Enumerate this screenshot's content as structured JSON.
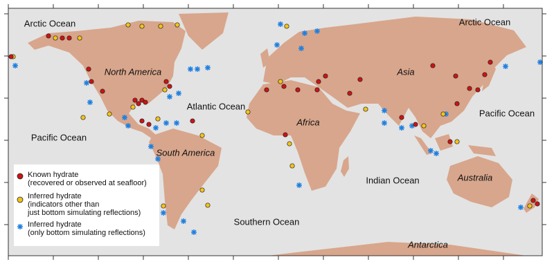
{
  "labels": [
    {
      "text": "Arctic Ocean",
      "italic": false
    },
    {
      "text": "Arctic Ocean",
      "italic": false
    },
    {
      "text": "North America",
      "italic": true
    },
    {
      "text": "Atlantic Ocean",
      "italic": false
    },
    {
      "text": "Pacific Ocean",
      "italic": false
    },
    {
      "text": "Africa",
      "italic": true
    },
    {
      "text": "Asia",
      "italic": true
    },
    {
      "text": "Pacific Ocean",
      "italic": false
    },
    {
      "text": "South America",
      "italic": true
    },
    {
      "text": "Indian Ocean",
      "italic": false
    },
    {
      "text": "Australia",
      "italic": true
    },
    {
      "text": "Southern Ocean",
      "italic": false
    },
    {
      "text": "Antarctica",
      "italic": true
    }
  ],
  "legend": [
    {
      "lines": [
        "Known hydrate",
        "(recovered or observed at seafloor)"
      ]
    },
    {
      "lines": [
        "Inferred hydrate",
        "(indicators other than",
        "just bottom simulating reflections)"
      ]
    },
    {
      "lines": [
        "Inferred hydrate",
        "(only bottom simulating reflections)"
      ]
    }
  ]
}
